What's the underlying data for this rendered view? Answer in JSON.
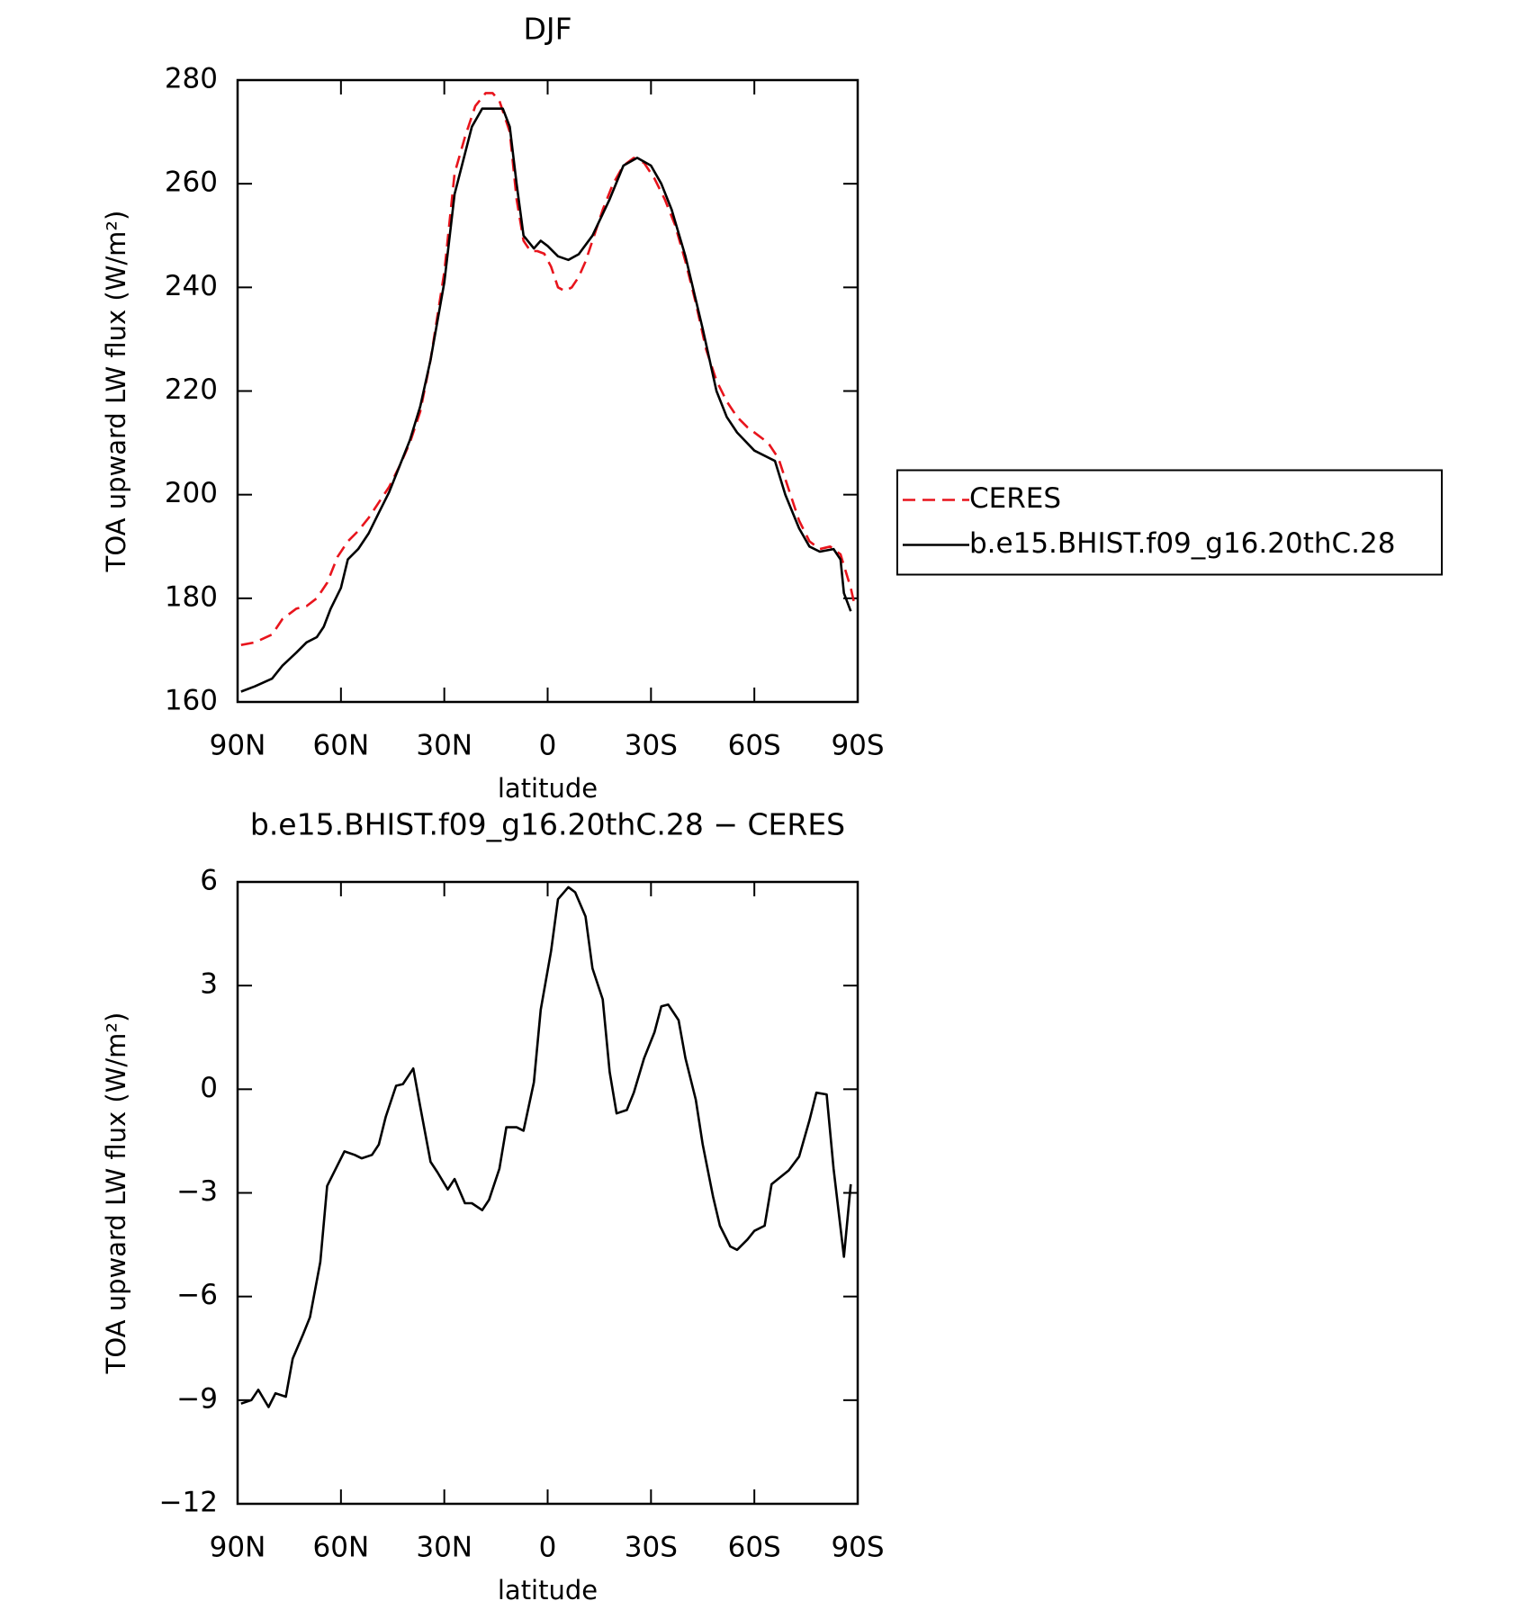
{
  "chart_data": [
    {
      "type": "line",
      "title": "DJF",
      "xlabel": "latitude",
      "ylabel": "TOA upward LW flux (W/m²)",
      "xlim": [
        90,
        -90
      ],
      "xticks": [
        {
          "value": 90,
          "label": "90N"
        },
        {
          "value": 60,
          "label": "60N"
        },
        {
          "value": 30,
          "label": "30N"
        },
        0,
        {
          "value": -30,
          "label": "30S"
        },
        {
          "value": -60,
          "label": "60S"
        },
        {
          "value": -90,
          "label": "90S"
        }
      ],
      "ylim": [
        160,
        280
      ],
      "yticks": [
        160,
        180,
        200,
        220,
        240,
        260,
        280
      ],
      "legend": "right",
      "series": [
        {
          "name": "CERES",
          "color": "#e8141c",
          "dash": true,
          "x": [
            89,
            85,
            80,
            77,
            73,
            70,
            67,
            64,
            61,
            58,
            55,
            52,
            49,
            46,
            43,
            40,
            37,
            34,
            30,
            27,
            24,
            21,
            18,
            16,
            14,
            11,
            9,
            7,
            5,
            3,
            1,
            -1,
            -3,
            -5,
            -7,
            -9,
            -11,
            -13,
            -16,
            -19,
            -22,
            -25,
            -28,
            -31,
            -34,
            -37,
            -40,
            -43,
            -46,
            -49,
            -52,
            -55,
            -58,
            -61,
            -64,
            -67,
            -70,
            -73,
            -76,
            -79,
            -82,
            -85,
            -88,
            -89
          ],
          "values": [
            171,
            171.5,
            173,
            176,
            178,
            178.5,
            180,
            183,
            188,
            191,
            193,
            195.5,
            198.5,
            201.5,
            205.5,
            210,
            216,
            226,
            243,
            262,
            269,
            275,
            277.5,
            277.5,
            276,
            270,
            257,
            249,
            247,
            247,
            246.5,
            244,
            240,
            239.3,
            240,
            242,
            245,
            249,
            255,
            260,
            263.5,
            265,
            264,
            261,
            257,
            252,
            245,
            237,
            228,
            222,
            218,
            215,
            213,
            211.5,
            210,
            207,
            201,
            195,
            191,
            189.5,
            190,
            188.5,
            182,
            179
          ]
        },
        {
          "name": "b.e15.BHIST.f09_g16.20thC.28",
          "color": "#000000",
          "dash": false,
          "x": [
            89,
            85,
            80,
            77,
            73,
            70,
            67,
            65,
            63,
            60,
            58,
            55,
            52,
            49,
            46,
            43,
            40,
            37,
            34,
            30,
            27,
            22,
            19,
            17,
            13,
            11,
            9,
            7,
            4,
            2,
            0,
            -3,
            -6,
            -9,
            -13,
            -18,
            -22,
            -26,
            -30,
            -33,
            -36,
            -40,
            -45,
            -49,
            -52,
            -55,
            -60,
            -66,
            -69,
            -73,
            -76,
            -79,
            -83,
            -85,
            -86,
            -88
          ],
          "values": [
            162,
            163,
            164.5,
            167,
            169.5,
            171.5,
            172.5,
            174.5,
            178,
            182,
            187.5,
            189.5,
            192.5,
            196.5,
            200.5,
            205.5,
            210.5,
            217,
            226,
            241,
            258,
            271,
            274.5,
            274.5,
            274.5,
            271,
            260,
            250,
            247.5,
            249,
            248,
            246,
            245.3,
            246.4,
            250,
            257,
            263.5,
            265,
            263.5,
            260,
            255,
            246,
            232,
            220,
            215,
            212,
            208.5,
            206.5,
            200,
            193.5,
            190,
            189,
            189.5,
            187.5,
            181,
            177.5
          ]
        }
      ]
    },
    {
      "type": "line",
      "title": "b.e15.BHIST.f09_g16.20thC.28 − CERES",
      "xlabel": "latitude",
      "ylabel": "TOA upward LW flux (W/m²)",
      "xlim": [
        90,
        -90
      ],
      "xticks": [
        {
          "value": 90,
          "label": "90N"
        },
        {
          "value": 60,
          "label": "60N"
        },
        {
          "value": 30,
          "label": "30N"
        },
        0,
        {
          "value": -30,
          "label": "30S"
        },
        {
          "value": -60,
          "label": "60S"
        },
        {
          "value": -90,
          "label": "90S"
        }
      ],
      "ylim": [
        -12,
        6
      ],
      "yticks": [
        {
          "value": -12,
          "label": "−12"
        },
        {
          "value": -9,
          "label": "−9"
        },
        {
          "value": -6,
          "label": "−6"
        },
        {
          "value": -3,
          "label": "−3"
        },
        0,
        3,
        6
      ],
      "series": [
        {
          "color": "#000000",
          "dash": false,
          "x": [
            89,
            86,
            84,
            81,
            79,
            76,
            74,
            71,
            69,
            66,
            64,
            61,
            59,
            56,
            54,
            51,
            49,
            47,
            44,
            42,
            39,
            37,
            34,
            32,
            29,
            27,
            24,
            22,
            19,
            17,
            14,
            12,
            9,
            7,
            4,
            2,
            -1,
            -3,
            -6,
            -8,
            -11,
            -13,
            -16,
            -18,
            -20,
            -23,
            -25,
            -28,
            -31,
            -33,
            -35,
            -38,
            -40,
            -43,
            -45,
            -48,
            -50,
            -53,
            -55,
            -58,
            -60,
            -63,
            -65,
            -70,
            -73,
            -76,
            -78,
            -81,
            -83,
            -86,
            -88
          ],
          "values": [
            -9.1,
            -9.0,
            -8.7,
            -9.2,
            -8.8,
            -8.9,
            -7.8,
            -7.1,
            -6.6,
            -5.0,
            -2.8,
            -2.2,
            -1.8,
            -1.9,
            -2.0,
            -1.9,
            -1.6,
            -0.8,
            0.1,
            0.15,
            0.6,
            -0.5,
            -2.1,
            -2.4,
            -2.9,
            -2.6,
            -3.3,
            -3.3,
            -3.5,
            -3.2,
            -2.3,
            -1.1,
            -1.1,
            -1.2,
            0.2,
            2.3,
            4.0,
            5.5,
            5.85,
            5.7,
            5.0,
            3.5,
            2.6,
            0.5,
            -0.7,
            -0.6,
            -0.1,
            0.9,
            1.65,
            2.4,
            2.45,
            2.0,
            0.9,
            -0.3,
            -1.6,
            -3.1,
            -3.95,
            -4.55,
            -4.65,
            -4.35,
            -4.1,
            -3.95,
            -2.75,
            -2.35,
            -1.95,
            -0.9,
            -0.1,
            -0.15,
            -2.3,
            -4.85,
            -2.75
          ]
        }
      ]
    }
  ]
}
